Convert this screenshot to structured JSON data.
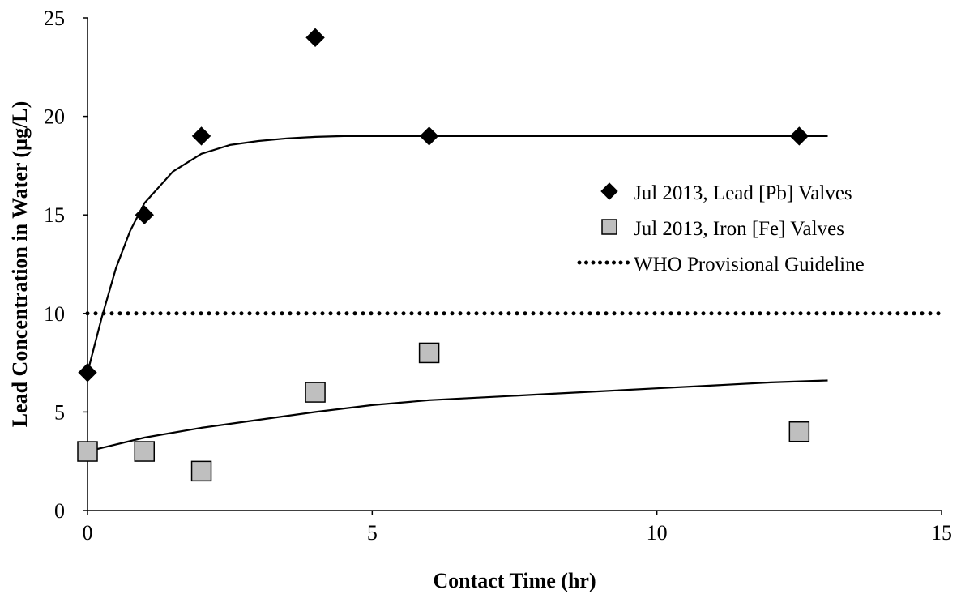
{
  "chart_data": {
    "type": "scatter",
    "title": "",
    "xlabel": "Contact Time (hr)",
    "ylabel": "Lead Concentration  in Water (µg/L)",
    "xlim": [
      0,
      15
    ],
    "ylim": [
      0,
      25
    ],
    "xticks": [
      0,
      5,
      10,
      15
    ],
    "yticks": [
      0,
      5,
      10,
      15,
      20,
      25
    ],
    "grid": false,
    "legend_position": "right",
    "series": [
      {
        "name": "Jul 2013, Lead [Pb] Valves",
        "marker": "diamond",
        "color": "#000000",
        "x": [
          0,
          1,
          2,
          4,
          6,
          12.5
        ],
        "y": [
          7,
          15,
          19,
          24,
          19,
          19
        ]
      },
      {
        "name": "Jul 2013, Iron [Fe] Valves",
        "marker": "square",
        "color": "#bfbfbf",
        "x": [
          0,
          1,
          2,
          4,
          6,
          12.5
        ],
        "y": [
          3,
          3,
          2,
          6,
          8,
          4
        ]
      }
    ],
    "trendlines": [
      {
        "series": "Jul 2013, Lead [Pb] Valves",
        "x": [
          0,
          0.25,
          0.5,
          0.75,
          1,
          1.5,
          2,
          2.5,
          3,
          3.5,
          4,
          4.5,
          5,
          6,
          8,
          10,
          12,
          13
        ],
        "y": [
          7,
          9.8,
          12.3,
          14.2,
          15.6,
          17.2,
          18.1,
          18.55,
          18.75,
          18.88,
          18.96,
          19.0,
          19.0,
          19.0,
          19.0,
          19.0,
          19.0,
          19.0
        ]
      },
      {
        "series": "Jul 2013, Iron [Fe] Valves",
        "x": [
          0,
          1,
          2,
          3,
          4,
          5,
          6,
          7,
          8,
          9,
          10,
          11,
          12,
          13
        ],
        "y": [
          3.0,
          3.7,
          4.2,
          4.6,
          5.0,
          5.35,
          5.6,
          5.75,
          5.9,
          6.05,
          6.2,
          6.35,
          6.5,
          6.6
        ]
      }
    ],
    "reference_line": {
      "name": "WHO Provisional Guideline",
      "y": 10,
      "style": "dotted",
      "color": "#000000"
    }
  }
}
